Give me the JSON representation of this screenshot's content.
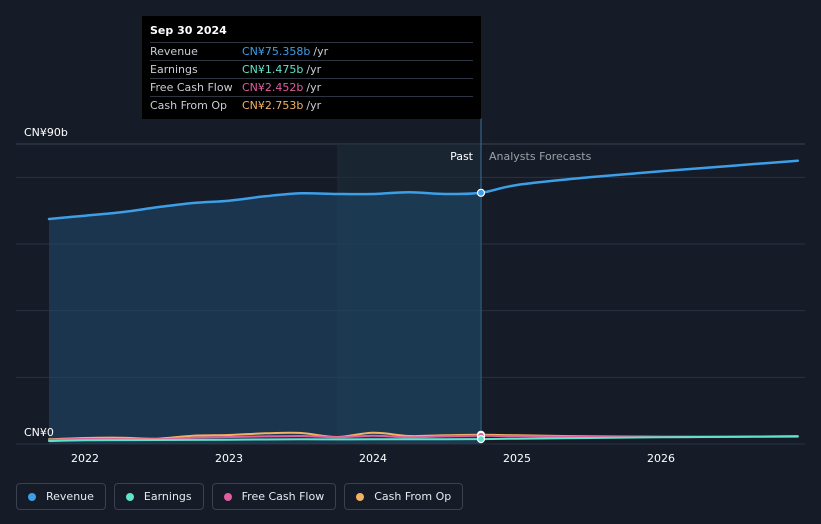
{
  "tooltip": {
    "date": "Sep 30 2024",
    "rows": [
      {
        "label": "Revenue",
        "value": "CN¥75.358b",
        "unit": "/yr",
        "color": "#3c9fe8"
      },
      {
        "label": "Earnings",
        "value": "CN¥1.475b",
        "unit": "/yr",
        "color": "#5fe3c9"
      },
      {
        "label": "Free Cash Flow",
        "value": "CN¥2.452b",
        "unit": "/yr",
        "color": "#e05da0"
      },
      {
        "label": "Cash From Op",
        "value": "CN¥2.753b",
        "unit": "/yr",
        "color": "#f2b263"
      }
    ]
  },
  "labels": {
    "past": "Past",
    "forecast": "Analysts Forecasts"
  },
  "legend": [
    {
      "label": "Revenue",
      "color": "#3c9fe8"
    },
    {
      "label": "Earnings",
      "color": "#5fe3c9"
    },
    {
      "label": "Free Cash Flow",
      "color": "#e05da0"
    },
    {
      "label": "Cash From Op",
      "color": "#f2b263"
    }
  ],
  "chart_data": {
    "type": "line",
    "y_unit": "CN¥ billions",
    "ylim": [
      0,
      90
    ],
    "y_tick_labels": [
      {
        "value": 90,
        "label": "CN¥90b"
      },
      {
        "value": 0,
        "label": "CN¥0"
      }
    ],
    "xlim": [
      2021.75,
      2026.95
    ],
    "x_ticks": [
      {
        "value": 2022,
        "label": "2022"
      },
      {
        "value": 2023,
        "label": "2023"
      },
      {
        "value": 2024,
        "label": "2024"
      },
      {
        "value": 2025,
        "label": "2025"
      },
      {
        "value": 2026,
        "label": "2026"
      }
    ],
    "highlight_region": [
      2023.75,
      2024.75
    ],
    "past_end": 2024.75,
    "marker_x": 2024.75,
    "grid": true,
    "legend_position": "bottom-left",
    "series": [
      {
        "name": "Revenue",
        "color": "#3c9fe8",
        "points": [
          [
            2021.75,
            67.5
          ],
          [
            2022.0,
            68.5
          ],
          [
            2022.25,
            69.5
          ],
          [
            2022.5,
            71.0
          ],
          [
            2022.75,
            72.3
          ],
          [
            2023.0,
            73.0
          ],
          [
            2023.25,
            74.3
          ],
          [
            2023.5,
            75.2
          ],
          [
            2023.75,
            75.0
          ],
          [
            2024.0,
            75.0
          ],
          [
            2024.25,
            75.5
          ],
          [
            2024.5,
            75.0
          ],
          [
            2024.75,
            75.358
          ],
          [
            2025.0,
            77.7
          ],
          [
            2025.5,
            80.0
          ],
          [
            2026.0,
            81.8
          ],
          [
            2026.5,
            83.5
          ],
          [
            2026.95,
            85.0
          ]
        ]
      },
      {
        "name": "Earnings",
        "color": "#5fe3c9",
        "points": [
          [
            2021.75,
            0.9
          ],
          [
            2022.0,
            1.1
          ],
          [
            2022.5,
            1.2
          ],
          [
            2023.0,
            1.3
          ],
          [
            2023.5,
            1.4
          ],
          [
            2024.0,
            1.4
          ],
          [
            2024.5,
            1.45
          ],
          [
            2024.75,
            1.475
          ],
          [
            2025.0,
            1.6
          ],
          [
            2025.5,
            1.8
          ],
          [
            2026.0,
            2.0
          ],
          [
            2026.5,
            2.2
          ],
          [
            2026.95,
            2.3
          ]
        ]
      },
      {
        "name": "Free Cash Flow",
        "color": "#e05da0",
        "points": [
          [
            2021.75,
            1.2
          ],
          [
            2022.0,
            1.5
          ],
          [
            2022.5,
            1.4
          ],
          [
            2022.75,
            1.9
          ],
          [
            2023.0,
            2.1
          ],
          [
            2023.5,
            2.4
          ],
          [
            2023.75,
            2.0
          ],
          [
            2024.0,
            2.5
          ],
          [
            2024.25,
            2.0
          ],
          [
            2024.5,
            2.3
          ],
          [
            2024.75,
            2.452
          ],
          [
            2025.0,
            2.3
          ],
          [
            2025.5,
            2.2
          ],
          [
            2026.0,
            2.1
          ],
          [
            2026.5,
            2.1
          ],
          [
            2026.95,
            2.2
          ]
        ]
      },
      {
        "name": "Cash From Op",
        "color": "#f2b263",
        "points": [
          [
            2021.75,
            1.4
          ],
          [
            2022.0,
            1.8
          ],
          [
            2022.25,
            1.9
          ],
          [
            2022.5,
            1.6
          ],
          [
            2022.75,
            2.5
          ],
          [
            2023.0,
            2.7
          ],
          [
            2023.25,
            3.2
          ],
          [
            2023.5,
            3.3
          ],
          [
            2023.75,
            2.1
          ],
          [
            2024.0,
            3.4
          ],
          [
            2024.25,
            2.4
          ],
          [
            2024.5,
            2.6
          ],
          [
            2024.75,
            2.753
          ],
          [
            2025.0,
            2.6
          ],
          [
            2025.5,
            2.3
          ],
          [
            2026.0,
            2.2
          ],
          [
            2026.5,
            2.2
          ],
          [
            2026.95,
            2.3
          ]
        ]
      }
    ]
  }
}
